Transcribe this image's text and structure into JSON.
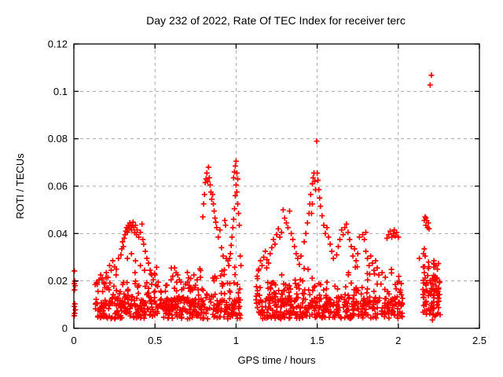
{
  "chart_data": {
    "type": "scatter",
    "title": "Day 232 of 2022, Rate Of TEC Index for receiver terc",
    "xlabel": "GPS time / hours",
    "ylabel": "ROTI / TECUs",
    "xlim": [
      0,
      2.5
    ],
    "ylim": [
      0,
      0.12
    ],
    "xtick_values": [
      0,
      0.5,
      1,
      1.5,
      2,
      2.5
    ],
    "xtick_labels": [
      "0",
      "0.5",
      "1",
      "1.5",
      "2",
      "2.5"
    ],
    "ytick_values": [
      0,
      0.02,
      0.04,
      0.06,
      0.08,
      0.1,
      0.12
    ],
    "ytick_labels": [
      "0",
      "0.02",
      "0.04",
      "0.06",
      "0.08",
      "0.1",
      "0.12"
    ],
    "grid": true,
    "legend": "none",
    "marker": "plus",
    "style": {
      "marker_color": "#ff0000",
      "grid_color": "#a9a9a9",
      "axis_color": "#000000",
      "background": "#ffffff"
    },
    "seed": 42,
    "bands": [
      {
        "t0": 0.13,
        "t1": 1.03,
        "r0": 0.004,
        "r1": 0.013,
        "n": 380
      },
      {
        "t0": 0.13,
        "t1": 1.03,
        "r0": 0.013,
        "r1": 0.0195,
        "n": 90
      },
      {
        "t0": 0.16,
        "t1": 1.02,
        "r0": 0.0195,
        "r1": 0.026,
        "n": 22
      },
      {
        "t0": 1.12,
        "t1": 2.03,
        "r0": 0.004,
        "r1": 0.013,
        "n": 380
      },
      {
        "t0": 1.12,
        "t1": 2.03,
        "r0": 0.013,
        "r1": 0.0195,
        "n": 90
      },
      {
        "t0": 1.13,
        "t1": 2.02,
        "r0": 0.0195,
        "r1": 0.026,
        "n": 22
      },
      {
        "t0": 2.15,
        "t1": 2.26,
        "r0": 0.005,
        "r1": 0.0215,
        "n": 80
      },
      {
        "t0": 2.15,
        "t1": 2.25,
        "r0": 0.0215,
        "r1": 0.028,
        "n": 14
      }
    ],
    "feature_points": [
      [
        0.003,
        0.0242
      ],
      [
        0.006,
        0.0199
      ],
      [
        0.003,
        0.0189
      ],
      [
        0.008,
        0.018
      ],
      [
        0.004,
        0.0162
      ],
      [
        0.006,
        0.0103
      ],
      [
        0.003,
        0.0092
      ],
      [
        0.009,
        0.0078
      ],
      [
        0.005,
        0.0063
      ],
      [
        0.003,
        0.0053
      ],
      [
        0.155,
        0.0205
      ],
      [
        0.165,
        0.0225
      ],
      [
        0.175,
        0.021
      ],
      [
        0.185,
        0.0195
      ],
      [
        0.2,
        0.0235
      ],
      [
        0.21,
        0.0215
      ],
      [
        0.22,
        0.0265
      ],
      [
        0.23,
        0.0245
      ],
      [
        0.24,
        0.0285
      ],
      [
        0.25,
        0.026
      ],
      [
        0.26,
        0.0225
      ],
      [
        0.275,
        0.0295
      ],
      [
        0.29,
        0.031
      ],
      [
        0.295,
        0.0335
      ],
      [
        0.3,
        0.0365
      ],
      [
        0.305,
        0.0345
      ],
      [
        0.31,
        0.038
      ],
      [
        0.315,
        0.0395
      ],
      [
        0.32,
        0.041
      ],
      [
        0.325,
        0.0425
      ],
      [
        0.33,
        0.0405
      ],
      [
        0.335,
        0.0435
      ],
      [
        0.34,
        0.042
      ],
      [
        0.345,
        0.0445
      ],
      [
        0.35,
        0.043
      ],
      [
        0.355,
        0.0415
      ],
      [
        0.36,
        0.0435
      ],
      [
        0.365,
        0.0448
      ],
      [
        0.37,
        0.0425
      ],
      [
        0.375,
        0.0405
      ],
      [
        0.38,
        0.0435
      ],
      [
        0.385,
        0.0395
      ],
      [
        0.39,
        0.0415
      ],
      [
        0.4,
        0.0385
      ],
      [
        0.41,
        0.0405
      ],
      [
        0.42,
        0.044
      ],
      [
        0.425,
        0.0375
      ],
      [
        0.43,
        0.0355
      ],
      [
        0.44,
        0.0325
      ],
      [
        0.45,
        0.0295
      ],
      [
        0.46,
        0.0275
      ],
      [
        0.47,
        0.0245
      ],
      [
        0.48,
        0.0225
      ],
      [
        0.49,
        0.0205
      ],
      [
        0.5,
        0.0225
      ],
      [
        0.52,
        0.0195
      ],
      [
        0.33,
        0.0295
      ],
      [
        0.355,
        0.0315
      ],
      [
        0.38,
        0.0285
      ],
      [
        0.41,
        0.0265
      ],
      [
        0.435,
        0.0245
      ],
      [
        0.6,
        0.0205
      ],
      [
        0.61,
        0.022
      ],
      [
        0.62,
        0.0255
      ],
      [
        0.63,
        0.0235
      ],
      [
        0.64,
        0.0225
      ],
      [
        0.65,
        0.0205
      ],
      [
        0.66,
        0.0195
      ],
      [
        0.7,
        0.0195
      ],
      [
        0.72,
        0.021
      ],
      [
        0.74,
        0.0225
      ],
      [
        0.76,
        0.0205
      ],
      [
        0.78,
        0.0215
      ],
      [
        0.795,
        0.047
      ],
      [
        0.8,
        0.0525
      ],
      [
        0.805,
        0.0565
      ],
      [
        0.81,
        0.0615
      ],
      [
        0.815,
        0.063
      ],
      [
        0.82,
        0.0655
      ],
      [
        0.825,
        0.062
      ],
      [
        0.83,
        0.068
      ],
      [
        0.835,
        0.0635
      ],
      [
        0.84,
        0.0605
      ],
      [
        0.845,
        0.0575
      ],
      [
        0.85,
        0.0545
      ],
      [
        0.855,
        0.0565
      ],
      [
        0.86,
        0.0525
      ],
      [
        0.865,
        0.0495
      ],
      [
        0.87,
        0.0465
      ],
      [
        0.875,
        0.0448
      ],
      [
        0.88,
        0.0425
      ],
      [
        0.89,
        0.0385
      ],
      [
        0.9,
        0.0415
      ],
      [
        0.91,
        0.034
      ],
      [
        0.92,
        0.0305
      ],
      [
        0.93,
        0.0455
      ],
      [
        0.935,
        0.0435
      ],
      [
        0.94,
        0.0295
      ],
      [
        0.95,
        0.0285
      ],
      [
        0.955,
        0.0265
      ],
      [
        0.96,
        0.0295
      ],
      [
        0.965,
        0.0315
      ],
      [
        0.97,
        0.035
      ],
      [
        0.975,
        0.0385
      ],
      [
        0.98,
        0.0425
      ],
      [
        0.985,
        0.046
      ],
      [
        0.985,
        0.0635
      ],
      [
        0.99,
        0.0505
      ],
      [
        0.99,
        0.066
      ],
      [
        0.995,
        0.056
      ],
      [
        0.995,
        0.0685
      ],
      [
        1.0,
        0.0705
      ],
      [
        1.0,
        0.0605
      ],
      [
        1.005,
        0.0655
      ],
      [
        1.005,
        0.0575
      ],
      [
        1.01,
        0.063
      ],
      [
        1.01,
        0.0525
      ],
      [
        1.015,
        0.0485
      ],
      [
        1.02,
        0.0435
      ],
      [
        1.025,
        0.0305
      ],
      [
        1.03,
        0.0265
      ],
      [
        1.13,
        0.022
      ],
      [
        1.14,
        0.025
      ],
      [
        1.15,
        0.0285
      ],
      [
        1.16,
        0.0265
      ],
      [
        1.17,
        0.03
      ],
      [
        1.18,
        0.0325
      ],
      [
        1.19,
        0.029
      ],
      [
        1.2,
        0.0275
      ],
      [
        1.21,
        0.0315
      ],
      [
        1.22,
        0.034
      ],
      [
        1.23,
        0.0375
      ],
      [
        1.24,
        0.0355
      ],
      [
        1.25,
        0.0395
      ],
      [
        1.26,
        0.042
      ],
      [
        1.27,
        0.0385
      ],
      [
        1.28,
        0.0405
      ],
      [
        1.29,
        0.05
      ],
      [
        1.3,
        0.0465
      ],
      [
        1.31,
        0.0445
      ],
      [
        1.32,
        0.0425
      ],
      [
        1.33,
        0.0495
      ],
      [
        1.34,
        0.04
      ],
      [
        1.35,
        0.0375
      ],
      [
        1.36,
        0.0345
      ],
      [
        1.37,
        0.0315
      ],
      [
        1.38,
        0.0295
      ],
      [
        1.39,
        0.027
      ],
      [
        1.4,
        0.0305
      ],
      [
        1.42,
        0.0365
      ],
      [
        1.43,
        0.04
      ],
      [
        1.44,
        0.0445
      ],
      [
        1.45,
        0.0485
      ],
      [
        1.455,
        0.0525
      ],
      [
        1.46,
        0.0565
      ],
      [
        1.465,
        0.0485
      ],
      [
        1.47,
        0.0525
      ],
      [
        1.47,
        0.061
      ],
      [
        1.475,
        0.0635
      ],
      [
        1.48,
        0.0655
      ],
      [
        1.485,
        0.062
      ],
      [
        1.49,
        0.0585
      ],
      [
        1.497,
        0.079
      ],
      [
        1.5,
        0.0655
      ],
      [
        1.505,
        0.0625
      ],
      [
        1.51,
        0.0585
      ],
      [
        1.515,
        0.055
      ],
      [
        1.52,
        0.0515
      ],
      [
        1.53,
        0.0475
      ],
      [
        1.54,
        0.0435
      ],
      [
        1.55,
        0.04
      ],
      [
        1.56,
        0.0425
      ],
      [
        1.57,
        0.0385
      ],
      [
        1.58,
        0.0355
      ],
      [
        1.59,
        0.0325
      ],
      [
        1.6,
        0.0295
      ],
      [
        1.62,
        0.031
      ],
      [
        1.63,
        0.0345
      ],
      [
        1.64,
        0.0375
      ],
      [
        1.65,
        0.0415
      ],
      [
        1.66,
        0.0395
      ],
      [
        1.67,
        0.0425
      ],
      [
        1.68,
        0.044
      ],
      [
        1.69,
        0.0405
      ],
      [
        1.7,
        0.0375
      ],
      [
        1.71,
        0.0345
      ],
      [
        1.72,
        0.0305
      ],
      [
        1.73,
        0.0335
      ],
      [
        1.74,
        0.0285
      ],
      [
        1.75,
        0.0315
      ],
      [
        1.76,
        0.0385
      ],
      [
        1.78,
        0.0395
      ],
      [
        1.79,
        0.0375
      ],
      [
        1.8,
        0.0405
      ],
      [
        1.8,
        0.0325
      ],
      [
        1.81,
        0.0295
      ],
      [
        1.82,
        0.0265
      ],
      [
        1.83,
        0.0305
      ],
      [
        1.84,
        0.0275
      ],
      [
        1.85,
        0.0245
      ],
      [
        1.86,
        0.0285
      ],
      [
        1.87,
        0.0255
      ],
      [
        1.88,
        0.0225
      ],
      [
        1.9,
        0.0235
      ],
      [
        1.92,
        0.0215
      ],
      [
        1.93,
        0.038
      ],
      [
        1.94,
        0.0395
      ],
      [
        1.95,
        0.041
      ],
      [
        1.96,
        0.0385
      ],
      [
        1.97,
        0.04
      ],
      [
        1.975,
        0.0415
      ],
      [
        1.98,
        0.039
      ],
      [
        1.99,
        0.0405
      ],
      [
        2.0,
        0.0385
      ],
      [
        2.13,
        0.0295
      ],
      [
        2.155,
        0.0315
      ],
      [
        2.16,
        0.0335
      ],
      [
        2.165,
        0.0305
      ],
      [
        2.16,
        0.0455
      ],
      [
        2.165,
        0.047
      ],
      [
        2.17,
        0.0465
      ],
      [
        2.17,
        0.0435
      ],
      [
        2.175,
        0.0455
      ],
      [
        2.18,
        0.0425
      ],
      [
        2.185,
        0.0445
      ],
      [
        2.19,
        0.042
      ],
      [
        2.196,
        0.1027
      ],
      [
        2.204,
        0.1068
      ],
      [
        2.21,
        0.0035
      ],
      [
        2.22,
        0.0285
      ],
      [
        2.23,
        0.0265
      ]
    ]
  }
}
